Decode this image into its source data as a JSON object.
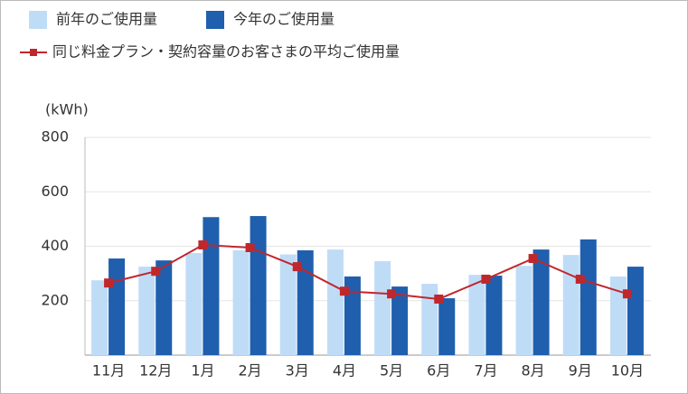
{
  "chart_data": {
    "type": "bar",
    "y_label": "(kWh)",
    "categories": [
      "11月",
      "12月",
      "1月",
      "2月",
      "3月",
      "4月",
      "5月",
      "6月",
      "7月",
      "8月",
      "9月",
      "10月"
    ],
    "series": [
      {
        "name": "前年のご使用量",
        "type": "bar",
        "color": "#bfdcf7",
        "values": [
          275,
          325,
          375,
          385,
          370,
          388,
          345,
          262,
          295,
          328,
          368,
          289
        ]
      },
      {
        "name": "今年のご使用量",
        "type": "bar",
        "color": "#1f5fad",
        "values": [
          355,
          348,
          507,
          511,
          385,
          289,
          252,
          209,
          292,
          388,
          425,
          325
        ]
      },
      {
        "name": "同じ料金プラン・契約容量のお客さまの平均ご使用量",
        "type": "line",
        "color": "#c0272d",
        "values": [
          265,
          308,
          405,
          395,
          325,
          235,
          225,
          206,
          279,
          355,
          279,
          225
        ]
      }
    ],
    "ylim": [
      0,
      800
    ],
    "yticks": [
      200,
      400,
      600,
      800
    ],
    "grid": true
  }
}
